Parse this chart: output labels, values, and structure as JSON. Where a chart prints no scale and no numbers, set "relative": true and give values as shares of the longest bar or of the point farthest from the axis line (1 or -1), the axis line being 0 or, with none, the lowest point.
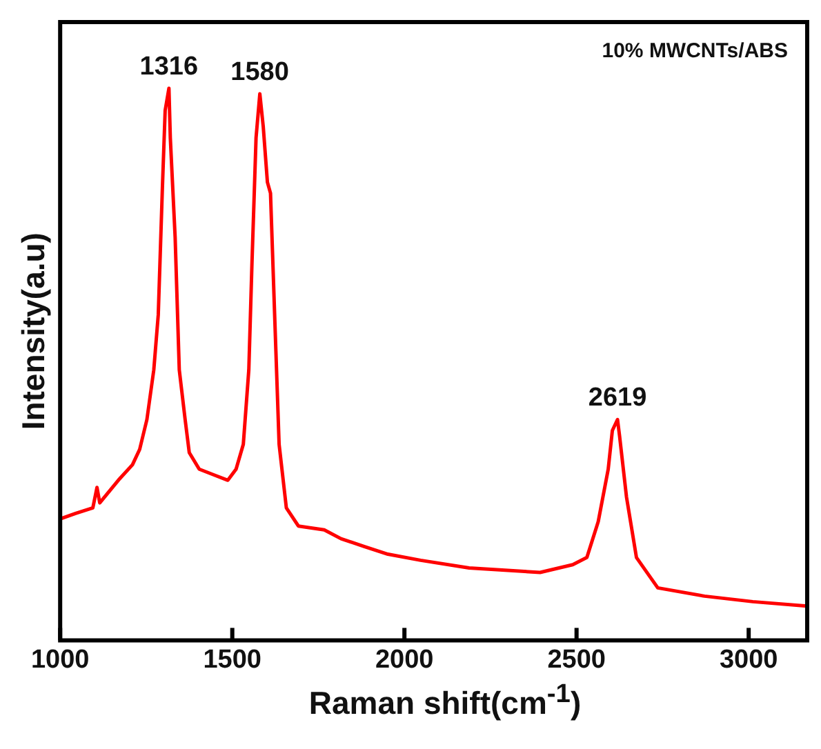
{
  "chart_data": {
    "type": "line",
    "relative": true,
    "xlabel": "Raman shift(cm$^{-1}$)",
    "ylabel": "Intensity(a.u)",
    "xlim": [
      1000,
      3170
    ],
    "xticks": [
      1000,
      1500,
      2000,
      2500,
      3000
    ],
    "grid": false,
    "legend": false,
    "marker": "none",
    "line_style": "solid",
    "annotations": [
      {
        "text": "1316",
        "x": 1316,
        "y": 1
      },
      {
        "text": "1580",
        "x": 1580,
        "y": 0.99
      },
      {
        "text": "2619",
        "x": 2619,
        "y": 0.4
      },
      "10% MWCNTs/ABS"
    ],
    "series": [
      {
        "color": "#ff0000",
        "x": [
          1000,
          1045,
          1095,
          1107,
          1115,
          1169,
          1210,
          1231,
          1252,
          1272,
          1285,
          1297,
          1305,
          1316,
          1320,
          1334,
          1346,
          1363,
          1375,
          1404,
          1445,
          1487,
          1511,
          1532,
          1548,
          1557,
          1569,
          1580,
          1590,
          1602,
          1611,
          1623,
          1636,
          1657,
          1692,
          1767,
          1816,
          1883,
          1952,
          2047,
          2188,
          2394,
          2489,
          2530,
          2563,
          2592,
          2604,
          2619,
          2625,
          2645,
          2674,
          2736,
          2872,
          3012,
          3169
        ],
        "values": [
          0.22,
          0.23,
          0.24,
          0.277,
          0.249,
          0.29,
          0.318,
          0.346,
          0.4,
          0.49,
          0.59,
          0.82,
          0.96,
          1,
          0.91,
          0.73,
          0.49,
          0.4,
          0.34,
          0.31,
          0.3,
          0.29,
          0.31,
          0.355,
          0.49,
          0.68,
          0.91,
          0.99,
          0.93,
          0.83,
          0.81,
          0.59,
          0.355,
          0.24,
          0.207,
          0.2,
          0.184,
          0.17,
          0.156,
          0.145,
          0.131,
          0.123,
          0.137,
          0.15,
          0.215,
          0.31,
          0.38,
          0.4,
          0.37,
          0.26,
          0.15,
          0.095,
          0.08,
          0.07,
          0.062
        ]
      }
    ]
  }
}
